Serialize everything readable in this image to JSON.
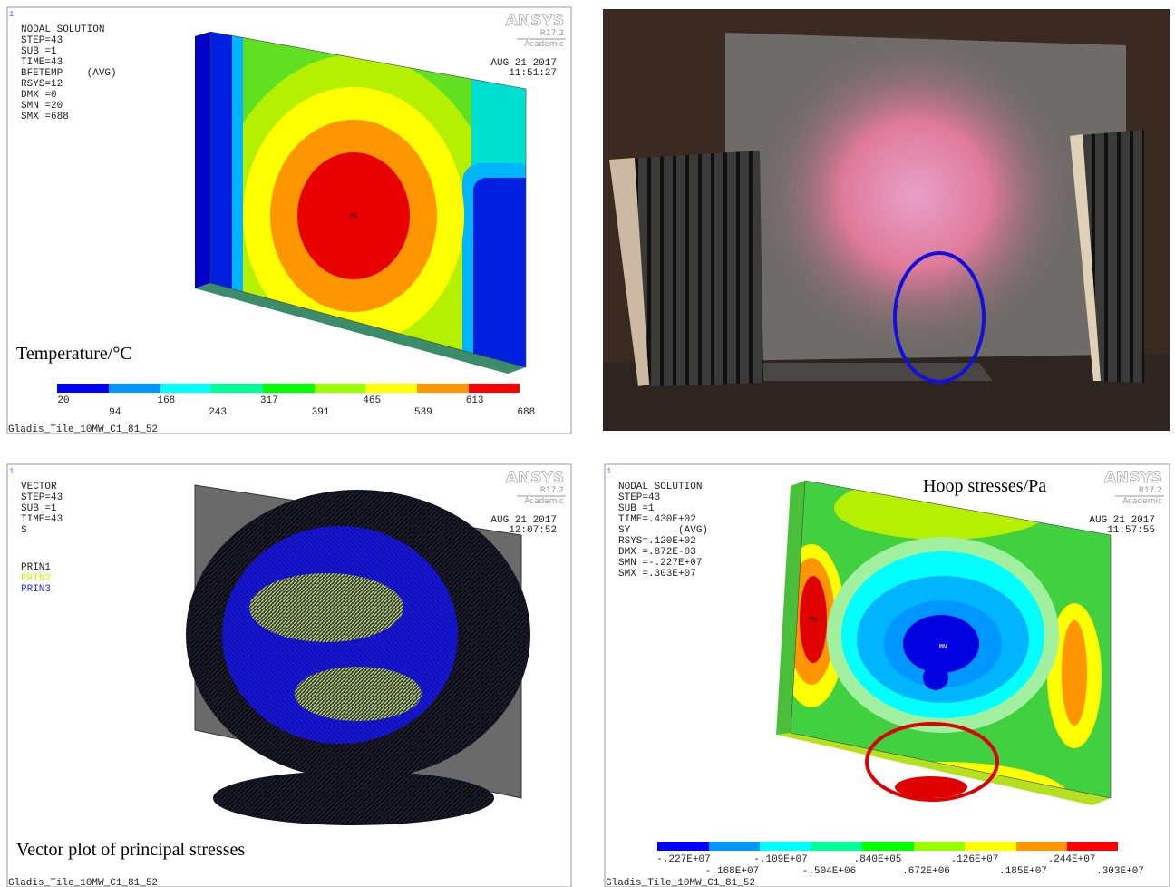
{
  "temperature_plot": {
    "window_number": "1",
    "info": [
      "NODAL SOLUTION",
      "STEP=43",
      "SUB =1",
      "TIME=43",
      "BFETEMP    (AVG)",
      "RSYS=12",
      "DMX =0",
      "SMN =20",
      "SMX =688"
    ],
    "logo": {
      "name": "ANSYS",
      "version": "R17.2",
      "edition": "Academic"
    },
    "date": "AUG 21 2017",
    "time": "11:51:27",
    "max_marker": "MX",
    "caption": "Temperature/°C",
    "legend": [
      "20",
      "94",
      "168",
      "243",
      "317",
      "391",
      "465",
      "539",
      "613",
      "688"
    ],
    "footer": "Gladis_Tile_10MW_C1_81_52"
  },
  "vector_plot": {
    "window_number": "1",
    "info": [
      "VECTOR",
      "STEP=43",
      "SUB =1",
      "TIME=43",
      "S"
    ],
    "components": [
      "PRIN1",
      "PRIN2",
      "PRIN3"
    ],
    "logo": {
      "name": "ANSYS",
      "version": "R17.2",
      "edition": "Academic"
    },
    "date": "AUG 21 2017",
    "time": "12:07:52",
    "caption": "Vector plot of principal stresses",
    "footer": "Gladis_Tile_10MW_C1_81_52"
  },
  "hoop_plot": {
    "window_number": "1",
    "info": [
      "NODAL SOLUTION",
      "STEP=43",
      "SUB =1",
      "TIME=.430E+02",
      "SY        (AVG)",
      "RSYS=.120E+02",
      "DMX =.872E-03",
      "SMN =-.227E+07",
      "SMX =.303E+07"
    ],
    "logo": {
      "name": "ANSYS",
      "version": "R17.2",
      "edition": "Academic"
    },
    "date": "AUG 21 2017",
    "time": "11:57:55",
    "max_marker": "MX",
    "min_marker": "MN",
    "caption": "Hoop stresses/Pa",
    "legend": [
      "-.227E+07",
      "-.168E+07",
      "-.109E+07",
      "-.504E+06",
      ".840E+05",
      ".672E+06",
      ".126E+07",
      ".185E+07",
      ".244E+07",
      ".303E+07"
    ],
    "footer": "Gladis_Tile_10MW_C1_81_52"
  }
}
